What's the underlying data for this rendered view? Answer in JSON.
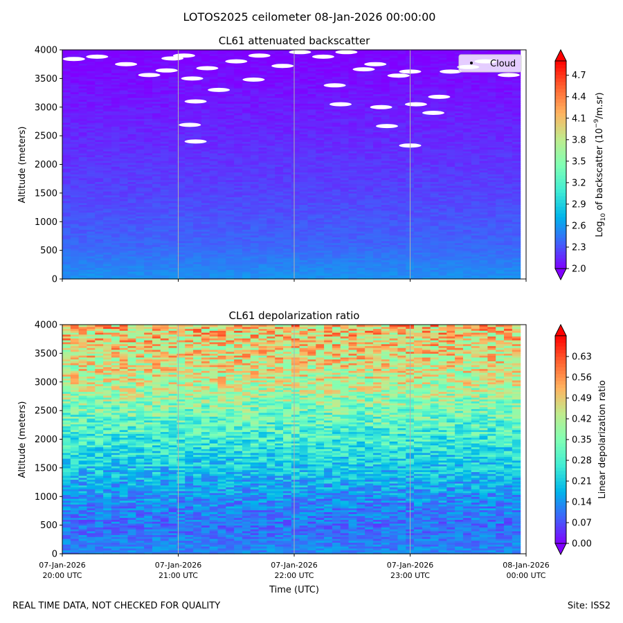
{
  "suptitle": "LOTOS2025 ceilometer 08-Jan-2026 00:00:00",
  "footer": {
    "left": "REAL TIME DATA, NOT CHECKED FOR QUALITY",
    "right": "Site: ISS2"
  },
  "colors": {
    "cmap": [
      "#8000ff",
      "#4062fa",
      "#00b5eb",
      "#40ecd4",
      "#80ffb4",
      "#c0eb8d",
      "#ffb360",
      "#ff6230",
      "#ff0000"
    ],
    "cloud_marker": "#ffffff",
    "grid": "#b0b0b0"
  },
  "chart_data": [
    {
      "type": "heatmap",
      "title": "CL61 attenuated backscatter",
      "ylabel": "Altitude (meters)",
      "xlabel": "",
      "x_ticks": [
        {
          "l1": "07-Jan-2026",
          "l2": "20:00 UTC"
        },
        {
          "l1": "07-Jan-2026",
          "l2": "21:00 UTC"
        },
        {
          "l1": "07-Jan-2026",
          "l2": "22:00 UTC"
        },
        {
          "l1": "07-Jan-2026",
          "l2": "23:00 UTC"
        },
        {
          "l1": "08-Jan-2026",
          "l2": "00:00 UTC"
        }
      ],
      "x_tick_labels_shown": false,
      "x_range_hours": [
        20,
        24
      ],
      "data_end_hour": 23.95,
      "y_ticks": [
        "0",
        "500",
        "1000",
        "1500",
        "2000",
        "2500",
        "3000",
        "3500",
        "4000"
      ],
      "ylim": [
        0,
        4000
      ],
      "colorbar": {
        "label_prefix": "Log",
        "label_sub": "10",
        "label_mid": " of backscatter (10",
        "label_sup": "−9",
        "label_suffix": "/m.sr)",
        "ticks": [
          "2.0",
          "2.3",
          "2.6",
          "2.9",
          "3.2",
          "3.5",
          "3.8",
          "4.1",
          "4.4",
          "4.7"
        ],
        "range": [
          2.0,
          4.9
        ]
      },
      "legend": {
        "entries": [
          "Cloud"
        ],
        "location": "top-right"
      },
      "profile": [
        {
          "alt": 0,
          "value": 2.58
        },
        {
          "alt": 300,
          "value": 2.48
        },
        {
          "alt": 600,
          "value": 2.38
        },
        {
          "alt": 1500,
          "value": 2.25
        },
        {
          "alt": 2500,
          "value": 2.15
        },
        {
          "alt": 3200,
          "value": 2.08
        },
        {
          "alt": 4000,
          "value": 2.0
        }
      ],
      "clouds": [
        {
          "hour": 20.1,
          "alt": 3840
        },
        {
          "hour": 20.3,
          "alt": 3880
        },
        {
          "hour": 20.55,
          "alt": 3750
        },
        {
          "hour": 20.75,
          "alt": 3560
        },
        {
          "hour": 20.9,
          "alt": 3640
        },
        {
          "hour": 20.95,
          "alt": 3850
        },
        {
          "hour": 21.05,
          "alt": 3900
        },
        {
          "hour": 21.12,
          "alt": 3500
        },
        {
          "hour": 21.15,
          "alt": 3100
        },
        {
          "hour": 21.15,
          "alt": 2400
        },
        {
          "hour": 21.1,
          "alt": 2690
        },
        {
          "hour": 21.25,
          "alt": 3680
        },
        {
          "hour": 21.35,
          "alt": 3300
        },
        {
          "hour": 21.5,
          "alt": 3800
        },
        {
          "hour": 21.65,
          "alt": 3480
        },
        {
          "hour": 21.7,
          "alt": 3900
        },
        {
          "hour": 21.9,
          "alt": 3720
        },
        {
          "hour": 22.05,
          "alt": 3960
        },
        {
          "hour": 22.25,
          "alt": 3880
        },
        {
          "hour": 22.35,
          "alt": 3380
        },
        {
          "hour": 22.4,
          "alt": 3050
        },
        {
          "hour": 22.45,
          "alt": 3960
        },
        {
          "hour": 22.6,
          "alt": 3660
        },
        {
          "hour": 22.7,
          "alt": 3750
        },
        {
          "hour": 22.75,
          "alt": 3000
        },
        {
          "hour": 22.8,
          "alt": 2670
        },
        {
          "hour": 22.9,
          "alt": 3550
        },
        {
          "hour": 23.0,
          "alt": 3620
        },
        {
          "hour": 23.05,
          "alt": 3050
        },
        {
          "hour": 23.0,
          "alt": 2330
        },
        {
          "hour": 23.2,
          "alt": 2900
        },
        {
          "hour": 23.25,
          "alt": 3180
        },
        {
          "hour": 23.35,
          "alt": 3620
        },
        {
          "hour": 23.5,
          "alt": 3700
        },
        {
          "hour": 23.65,
          "alt": 3800
        },
        {
          "hour": 23.85,
          "alt": 3560
        }
      ]
    },
    {
      "type": "heatmap",
      "title": "CL61 depolarization ratio",
      "ylabel": "Altitude (meters)",
      "xlabel": "Time (UTC)",
      "x_ticks": [
        {
          "l1": "07-Jan-2026",
          "l2": "20:00 UTC"
        },
        {
          "l1": "07-Jan-2026",
          "l2": "21:00 UTC"
        },
        {
          "l1": "07-Jan-2026",
          "l2": "22:00 UTC"
        },
        {
          "l1": "07-Jan-2026",
          "l2": "23:00 UTC"
        },
        {
          "l1": "08-Jan-2026",
          "l2": "00:00 UTC"
        }
      ],
      "x_tick_labels_shown": true,
      "x_range_hours": [
        20,
        24
      ],
      "data_end_hour": 23.95,
      "y_ticks": [
        "0",
        "500",
        "1000",
        "1500",
        "2000",
        "2500",
        "3000",
        "3500",
        "4000"
      ],
      "ylim": [
        0,
        4000
      ],
      "colorbar": {
        "label": "Linear depolarization ratio",
        "ticks": [
          "0.00",
          "0.07",
          "0.14",
          "0.21",
          "0.28",
          "0.35",
          "0.42",
          "0.49",
          "0.56",
          "0.63"
        ],
        "range": [
          0.0,
          0.7
        ]
      },
      "profile": [
        {
          "alt": 0,
          "value": 0.13
        },
        {
          "alt": 500,
          "value": 0.1
        },
        {
          "alt": 1000,
          "value": 0.14
        },
        {
          "alt": 1500,
          "value": 0.2
        },
        {
          "alt": 2000,
          "value": 0.27
        },
        {
          "alt": 2500,
          "value": 0.34
        },
        {
          "alt": 3000,
          "value": 0.43
        },
        {
          "alt": 3500,
          "value": 0.47
        },
        {
          "alt": 4000,
          "value": 0.5
        }
      ]
    }
  ]
}
